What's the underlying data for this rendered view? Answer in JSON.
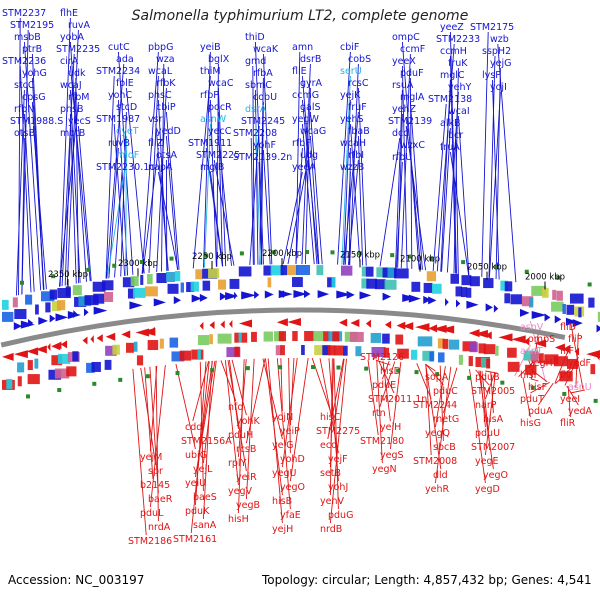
{
  "title": "Salmonella typhimurium LT2, complete genome",
  "accession": "Accession: NC_003197",
  "summary": "Topology: circular; Length: 4,857,432 bp; Genes: 4,541",
  "colors": {
    "forward": "#1414d2",
    "reverse": "#e01414",
    "rna_forward": "#22b6e6",
    "rna_reverse": "#ee88cc",
    "backbone": "#888888"
  },
  "scale_ticks": [
    "2000 kbp",
    "2050 kbp",
    "2100 kbp",
    "2150 kbp",
    "2200 kbp",
    "2250 kbp",
    "2300 kbp",
    "2350 kbp"
  ],
  "top_labels": [
    {
      "t": "STM2237",
      "c": "fwd"
    },
    {
      "t": "STM2195",
      "c": "fwd"
    },
    {
      "t": "msbB",
      "c": "fwd"
    },
    {
      "t": "ptrB",
      "c": "fwd"
    },
    {
      "t": "STM2236",
      "c": "fwd"
    },
    {
      "t": "yohG",
      "c": "fwd"
    },
    {
      "t": "stcC",
      "c": "fwd"
    },
    {
      "t": "cpsG",
      "c": "fwd"
    },
    {
      "t": "rfbN",
      "c": "fwd"
    },
    {
      "t": "STM1988.S",
      "c": "fwd"
    },
    {
      "t": "otsB",
      "c": "fwd"
    },
    {
      "t": "flhE",
      "c": "fwd"
    },
    {
      "t": "ruvA",
      "c": "fwd"
    },
    {
      "t": "yobA",
      "c": "fwd"
    },
    {
      "t": "STM2235",
      "c": "fwd"
    },
    {
      "t": "cirA",
      "c": "fwd"
    },
    {
      "t": "udk",
      "c": "fwd"
    },
    {
      "t": "wcaJ",
      "c": "fwd"
    },
    {
      "t": "rfbM",
      "c": "fwd"
    },
    {
      "t": "phsB",
      "c": "fwd"
    },
    {
      "t": "yecS",
      "c": "fwd"
    },
    {
      "t": "motB",
      "c": "fwd"
    },
    {
      "t": "cutC",
      "c": "fwd"
    },
    {
      "t": "ada",
      "c": "fwd"
    },
    {
      "t": "STM2234",
      "c": "fwd"
    },
    {
      "t": "folE",
      "c": "fwd"
    },
    {
      "t": "yohC",
      "c": "fwd"
    },
    {
      "t": "stcD",
      "c": "fwd"
    },
    {
      "t": "STM1987",
      "c": "fwd"
    },
    {
      "t": "cyeT",
      "c": "rnaf"
    },
    {
      "t": "ruvB",
      "c": "fwd"
    },
    {
      "t": "mioF",
      "c": "rnaf"
    },
    {
      "t": "STM2230.1c",
      "c": "fwd"
    },
    {
      "t": "pbpG",
      "c": "fwd"
    },
    {
      "t": "wza",
      "c": "fwd"
    },
    {
      "t": "wcaL",
      "c": "fwd"
    },
    {
      "t": "rfbK",
      "c": "fwd"
    },
    {
      "t": "phsC",
      "c": "fwd"
    },
    {
      "t": "cbiP",
      "c": "fwd"
    },
    {
      "t": "vsr",
      "c": "fwd"
    },
    {
      "t": "yedD",
      "c": "fwd"
    },
    {
      "t": "fliZ",
      "c": "fwd"
    },
    {
      "t": "otsA",
      "c": "fwd"
    },
    {
      "t": "napA",
      "c": "fwd"
    },
    {
      "t": "yeiB",
      "c": "fwd"
    },
    {
      "t": "bglX",
      "c": "fwd"
    },
    {
      "t": "thiM",
      "c": "fwd"
    },
    {
      "t": "wcaC",
      "c": "fwd"
    },
    {
      "t": "rfbP",
      "c": "fwd"
    },
    {
      "t": "pocR",
      "c": "fwd"
    },
    {
      "t": "asnW",
      "c": "rnaf"
    },
    {
      "t": "yecC",
      "c": "fwd"
    },
    {
      "t": "STM1911",
      "c": "fwd"
    },
    {
      "t": "STM2225",
      "c": "fwd"
    },
    {
      "t": "mglB",
      "c": "fwd"
    },
    {
      "t": "thiD",
      "c": "fwd"
    },
    {
      "t": "wcaK",
      "c": "fwd"
    },
    {
      "t": "gmd",
      "c": "fwd"
    },
    {
      "t": "rfbA",
      "c": "fwd"
    },
    {
      "t": "sbmC",
      "c": "fwd"
    },
    {
      "t": "cobU",
      "c": "fwd"
    },
    {
      "t": "dsrA",
      "c": "rnaf"
    },
    {
      "t": "STM2245",
      "c": "fwd"
    },
    {
      "t": "STM2208",
      "c": "fwd"
    },
    {
      "t": "yohF",
      "c": "fwd"
    },
    {
      "t": "STM2139.2n",
      "c": "fwd"
    },
    {
      "t": "amn",
      "c": "fwd"
    },
    {
      "t": "dsrB",
      "c": "fwd"
    },
    {
      "t": "fliE",
      "c": "fwd"
    },
    {
      "t": "gyrA",
      "c": "fwd"
    },
    {
      "t": "ccmG",
      "c": "fwd"
    },
    {
      "t": "galS",
      "c": "fwd"
    },
    {
      "t": "yegW",
      "c": "fwd"
    },
    {
      "t": "wcaG",
      "c": "fwd"
    },
    {
      "t": "rfbF",
      "c": "fwd"
    },
    {
      "t": "udg",
      "c": "fwd"
    },
    {
      "t": "yeeA",
      "c": "fwd"
    },
    {
      "t": "cbiF",
      "c": "fwd"
    },
    {
      "t": "cobS",
      "c": "fwd"
    },
    {
      "t": "serU",
      "c": "rnaf"
    },
    {
      "t": "rcsC",
      "c": "fwd"
    },
    {
      "t": "yejK",
      "c": "fwd"
    },
    {
      "t": "fruF",
      "c": "fwd"
    },
    {
      "t": "yehS",
      "c": "fwd"
    },
    {
      "t": "fbaB",
      "c": "fwd"
    },
    {
      "t": "wcaH",
      "c": "fwd"
    },
    {
      "t": "rfbI",
      "c": "fwd"
    },
    {
      "t": "wzzB",
      "c": "fwd"
    },
    {
      "t": "ompC",
      "c": "fwd"
    },
    {
      "t": "ccmF",
      "c": "fwd"
    },
    {
      "t": "yeeX",
      "c": "fwd"
    },
    {
      "t": "pduF",
      "c": "fwd"
    },
    {
      "t": "rsuA",
      "c": "fwd"
    },
    {
      "t": "mglA",
      "c": "fwd"
    },
    {
      "t": "yehZ",
      "c": "fwd"
    },
    {
      "t": "STM2139",
      "c": "fwd"
    },
    {
      "t": "dcd",
      "c": "fwd"
    },
    {
      "t": "wzxC",
      "c": "fwd"
    },
    {
      "t": "rfbU",
      "c": "fwd"
    },
    {
      "t": "yeeZ",
      "c": "fwd"
    },
    {
      "t": "STM2233",
      "c": "fwd"
    },
    {
      "t": "ccmH",
      "c": "fwd"
    },
    {
      "t": "fruK",
      "c": "fwd"
    },
    {
      "t": "mglC",
      "c": "fwd"
    },
    {
      "t": "yehY",
      "c": "fwd"
    },
    {
      "t": "STM2138",
      "c": "fwd"
    },
    {
      "t": "wcaI",
      "c": "fwd"
    },
    {
      "t": "alkB",
      "c": "fwd"
    },
    {
      "t": "bcr",
      "c": "fwd"
    },
    {
      "t": "fruA",
      "c": "fwd"
    },
    {
      "t": "STM2175",
      "c": "fwd"
    },
    {
      "t": "wzb",
      "c": "fwd"
    },
    {
      "t": "sspH2",
      "c": "fwd"
    },
    {
      "t": "yejG",
      "c": "fwd"
    },
    {
      "t": "lysP",
      "c": "fwd"
    },
    {
      "t": "yojI",
      "c": "fwd"
    }
  ],
  "bottom_labels": [
    {
      "t": "fliD",
      "c": "rev"
    },
    {
      "t": "fliP",
      "c": "rev"
    },
    {
      "t": "fliF",
      "c": "rev"
    },
    {
      "t": "yedF",
      "c": "rev"
    },
    {
      "t": "fliI",
      "c": "rev"
    },
    {
      "t": "asnU",
      "c": "rnar"
    },
    {
      "t": "yeeI",
      "c": "rev"
    },
    {
      "t": "yedA",
      "c": "rev"
    },
    {
      "t": "fliR",
      "c": "rev"
    },
    {
      "t": "asnV",
      "c": "rnar"
    },
    {
      "t": "ompS",
      "c": "rev"
    },
    {
      "t": "asnT",
      "c": "rnar"
    },
    {
      "t": "yegH",
      "c": "rev"
    },
    {
      "t": "hisI",
      "c": "rev"
    },
    {
      "t": "hisF",
      "c": "rev"
    },
    {
      "t": "pduT",
      "c": "rev"
    },
    {
      "t": "pduA",
      "c": "rev"
    },
    {
      "t": "hisG",
      "c": "rev"
    },
    {
      "t": "pduB",
      "c": "rev"
    },
    {
      "t": "STM2005",
      "c": "rev"
    },
    {
      "t": "narP",
      "c": "rev"
    },
    {
      "t": "hisA",
      "c": "rev"
    },
    {
      "t": "pduU",
      "c": "rev"
    },
    {
      "t": "STM2007",
      "c": "rev"
    },
    {
      "t": "yegE",
      "c": "rev"
    },
    {
      "t": "yegO",
      "c": "rev"
    },
    {
      "t": "yegD",
      "c": "rev"
    },
    {
      "t": "sopA",
      "c": "rev"
    },
    {
      "t": "pduC",
      "c": "rev"
    },
    {
      "t": "STM2244",
      "c": "rev"
    },
    {
      "t": "metG",
      "c": "rev"
    },
    {
      "t": "yegQ",
      "c": "rev"
    },
    {
      "t": "sbcB",
      "c": "rev"
    },
    {
      "t": "STM2008",
      "c": "rev"
    },
    {
      "t": "dld",
      "c": "rev"
    },
    {
      "t": "yehR",
      "c": "rev"
    },
    {
      "t": "STM2126",
      "c": "rev"
    },
    {
      "t": "hisD",
      "c": "rev"
    },
    {
      "t": "pduE",
      "c": "rev"
    },
    {
      "t": "STM2011.1n",
      "c": "rev"
    },
    {
      "t": "rtn",
      "c": "rev"
    },
    {
      "t": "yeiH",
      "c": "rev"
    },
    {
      "t": "STM2180",
      "c": "rev"
    },
    {
      "t": "yegS",
      "c": "rev"
    },
    {
      "t": "yegN",
      "c": "rev"
    },
    {
      "t": "hisC",
      "c": "rev"
    },
    {
      "t": "STM2275",
      "c": "rev"
    },
    {
      "t": "eco",
      "c": "rev"
    },
    {
      "t": "yejF",
      "c": "rev"
    },
    {
      "t": "setB",
      "c": "rev"
    },
    {
      "t": "yohJ",
      "c": "rev"
    },
    {
      "t": "yehV",
      "c": "rev"
    },
    {
      "t": "pduG",
      "c": "rev"
    },
    {
      "t": "nrdB",
      "c": "rev"
    },
    {
      "t": "yojN",
      "c": "rev"
    },
    {
      "t": "yeiP",
      "c": "rev"
    },
    {
      "t": "yeiG",
      "c": "rev"
    },
    {
      "t": "yohD",
      "c": "rev"
    },
    {
      "t": "yegU",
      "c": "rev"
    },
    {
      "t": "yegO",
      "c": "rev"
    },
    {
      "t": "hisB",
      "c": "rev"
    },
    {
      "t": "yfaE",
      "c": "rev"
    },
    {
      "t": "yejH",
      "c": "rev"
    },
    {
      "t": "nfo",
      "c": "rev"
    },
    {
      "t": "yohK",
      "c": "rev"
    },
    {
      "t": "pduH",
      "c": "rev"
    },
    {
      "t": "rcsB",
      "c": "rev"
    },
    {
      "t": "rplY",
      "c": "rev"
    },
    {
      "t": "yeiR",
      "c": "rev"
    },
    {
      "t": "yegV",
      "c": "rev"
    },
    {
      "t": "yegB",
      "c": "rev"
    },
    {
      "t": "hisH",
      "c": "rev"
    },
    {
      "t": "cdd",
      "c": "rev"
    },
    {
      "t": "STM2156A",
      "c": "rev"
    },
    {
      "t": "ubiG",
      "c": "rev"
    },
    {
      "t": "yejL",
      "c": "rev"
    },
    {
      "t": "yeiU",
      "c": "rev"
    },
    {
      "t": "baeS",
      "c": "rev"
    },
    {
      "t": "pduK",
      "c": "rev"
    },
    {
      "t": "sanA",
      "c": "rev"
    },
    {
      "t": "STM2161",
      "c": "rev"
    },
    {
      "t": "yejM",
      "c": "rev"
    },
    {
      "t": "spr",
      "c": "rev"
    },
    {
      "t": "b2145",
      "c": "rev"
    },
    {
      "t": "baeR",
      "c": "rev"
    },
    {
      "t": "pduL",
      "c": "rev"
    },
    {
      "t": "nrdA",
      "c": "rev"
    },
    {
      "t": "STM2186",
      "c": "rev"
    }
  ]
}
